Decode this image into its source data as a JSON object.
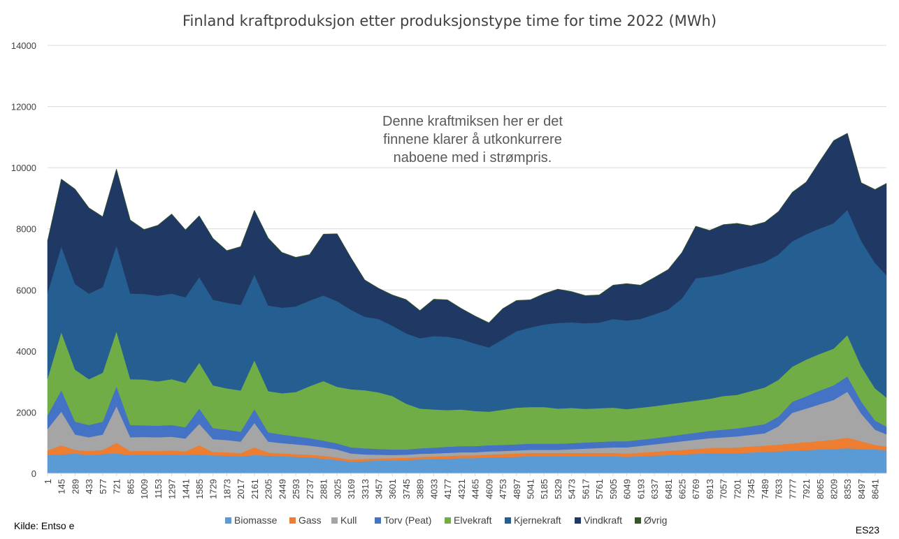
{
  "chart_data": {
    "type": "area",
    "title": "Finland kraftproduksjon etter produksjonstype time for time 2022 (MWh)",
    "xlabel": "",
    "ylabel": "",
    "ylim": [
      0,
      14000
    ],
    "yticks": [
      0,
      2000,
      4000,
      6000,
      8000,
      10000,
      12000,
      14000
    ],
    "xticks": [
      1,
      145,
      289,
      433,
      577,
      721,
      865,
      1009,
      1153,
      1297,
      1441,
      1585,
      1729,
      1873,
      2017,
      2161,
      2305,
      2449,
      2593,
      2737,
      2881,
      3025,
      3169,
      3313,
      3457,
      3601,
      3745,
      3889,
      4033,
      4177,
      4321,
      4465,
      4609,
      4753,
      4897,
      5041,
      5185,
      5329,
      5473,
      5617,
      5761,
      5905,
      6049,
      6193,
      6337,
      6481,
      6625,
      6769,
      6913,
      7057,
      7201,
      7345,
      7489,
      7633,
      7777,
      7921,
      8065,
      8209,
      8353,
      8497,
      8641
    ],
    "xlim": [
      1,
      8760
    ],
    "grid": true,
    "legend_position": "bottom",
    "annotation": [
      "Denne kraftmiksen her er det",
      "finnene klarer å utkonkurrere",
      "naboene med i strømpris."
    ],
    "series": [
      {
        "name": "Biomasse",
        "color": "#5B9BD5",
        "x": [
          1,
          145,
          289,
          433,
          577,
          721,
          865,
          1009,
          1153,
          1297,
          1441,
          1585,
          1729,
          1873,
          2017,
          2161,
          2305,
          2449,
          2593,
          2737,
          2881,
          3025,
          3169,
          3313,
          3457,
          3601,
          3745,
          3889,
          4033,
          4177,
          4321,
          4465,
          4609,
          4753,
          4897,
          5041,
          5185,
          5329,
          5473,
          5617,
          5761,
          5905,
          6049,
          6193,
          6337,
          6481,
          6625,
          6769,
          6913,
          7057,
          7201,
          7345,
          7489,
          7633,
          7777,
          7921,
          8065,
          8209,
          8353,
          8497,
          8641,
          8760
        ],
        "values": [
          600,
          620,
          650,
          600,
          630,
          650,
          600,
          620,
          610,
          620,
          600,
          620,
          590,
          580,
          560,
          600,
          580,
          560,
          540,
          520,
          480,
          440,
          380,
          400,
          420,
          430,
          440,
          460,
          470,
          480,
          500,
          500,
          520,
          530,
          540,
          560,
          560,
          560,
          560,
          560,
          560,
          560,
          540,
          560,
          580,
          600,
          620,
          640,
          660,
          660,
          660,
          680,
          700,
          720,
          740,
          760,
          780,
          800,
          820,
          800,
          780,
          760
        ]
      },
      {
        "name": "Gass",
        "color": "#ED7D31",
        "x": [
          1,
          145,
          289,
          433,
          577,
          721,
          865,
          1009,
          1153,
          1297,
          1441,
          1585,
          1729,
          1873,
          2017,
          2161,
          2305,
          2449,
          2593,
          2737,
          2881,
          3025,
          3169,
          3313,
          3457,
          3601,
          3745,
          3889,
          4033,
          4177,
          4321,
          4465,
          4609,
          4753,
          4897,
          5041,
          5185,
          5329,
          5473,
          5617,
          5761,
          5905,
          6049,
          6193,
          6337,
          6481,
          6625,
          6769,
          6913,
          7057,
          7201,
          7345,
          7489,
          7633,
          7777,
          7921,
          8065,
          8209,
          8353,
          8497,
          8641,
          8760
        ],
        "values": [
          150,
          300,
          120,
          130,
          140,
          350,
          130,
          120,
          120,
          130,
          120,
          300,
          110,
          110,
          100,
          250,
          100,
          90,
          90,
          90,
          90,
          80,
          70,
          70,
          70,
          70,
          70,
          80,
          80,
          90,
          90,
          90,
          100,
          100,
          110,
          110,
          110,
          110,
          110,
          110,
          110,
          110,
          110,
          120,
          130,
          140,
          150,
          160,
          170,
          180,
          190,
          200,
          210,
          220,
          240,
          260,
          280,
          300,
          350,
          250,
          150,
          120
        ]
      },
      {
        "name": "Kull",
        "color": "#A5A5A5",
        "x": [
          1,
          145,
          289,
          433,
          577,
          721,
          865,
          1009,
          1153,
          1297,
          1441,
          1585,
          1729,
          1873,
          2017,
          2161,
          2305,
          2449,
          2593,
          2737,
          2881,
          3025,
          3169,
          3313,
          3457,
          3601,
          3745,
          3889,
          4033,
          4177,
          4321,
          4465,
          4609,
          4753,
          4897,
          5041,
          5185,
          5329,
          5473,
          5617,
          5761,
          5905,
          6049,
          6193,
          6337,
          6481,
          6625,
          6769,
          6913,
          7057,
          7201,
          7345,
          7489,
          7633,
          7777,
          7921,
          8065,
          8209,
          8353,
          8497,
          8641,
          8760
        ],
        "values": [
          700,
          1100,
          500,
          450,
          500,
          1200,
          450,
          450,
          450,
          450,
          420,
          700,
          420,
          400,
          380,
          800,
          360,
          340,
          320,
          300,
          280,
          260,
          200,
          150,
          120,
          100,
          100,
          100,
          100,
          100,
          100,
          100,
          100,
          100,
          100,
          100,
          100,
          100,
          120,
          140,
          160,
          180,
          200,
          220,
          240,
          260,
          280,
          300,
          320,
          340,
          360,
          380,
          400,
          600,
          1000,
          1100,
          1200,
          1300,
          1500,
          900,
          500,
          400
        ]
      },
      {
        "name": "Torv (Peat)",
        "color": "#4472C4",
        "x": [
          1,
          145,
          289,
          433,
          577,
          721,
          865,
          1009,
          1153,
          1297,
          1441,
          1585,
          1729,
          1873,
          2017,
          2161,
          2305,
          2449,
          2593,
          2737,
          2881,
          3025,
          3169,
          3313,
          3457,
          3601,
          3745,
          3889,
          4033,
          4177,
          4321,
          4465,
          4609,
          4753,
          4897,
          5041,
          5185,
          5329,
          5473,
          5617,
          5761,
          5905,
          6049,
          6193,
          6337,
          6481,
          6625,
          6769,
          6913,
          7057,
          7201,
          7345,
          7489,
          7633,
          7777,
          7921,
          8065,
          8209,
          8353,
          8497,
          8641,
          8760
        ],
        "values": [
          450,
          700,
          420,
          400,
          420,
          650,
          400,
          380,
          380,
          380,
          370,
          500,
          360,
          340,
          320,
          450,
          300,
          280,
          260,
          240,
          220,
          200,
          200,
          200,
          190,
          180,
          170,
          180,
          190,
          200,
          200,
          200,
          200,
          200,
          200,
          200,
          200,
          200,
          200,
          200,
          200,
          200,
          200,
          200,
          200,
          210,
          220,
          230,
          240,
          250,
          260,
          280,
          300,
          320,
          360,
          400,
          450,
          480,
          500,
          400,
          300,
          250
        ]
      },
      {
        "name": "Elvekraft",
        "color": "#70AD47",
        "x": [
          1,
          145,
          289,
          433,
          577,
          721,
          865,
          1009,
          1153,
          1297,
          1441,
          1585,
          1729,
          1873,
          2017,
          2161,
          2305,
          2449,
          2593,
          2737,
          2881,
          3025,
          3169,
          3313,
          3457,
          3601,
          3745,
          3889,
          4033,
          4177,
          4321,
          4465,
          4609,
          4753,
          4897,
          5041,
          5185,
          5329,
          5473,
          5617,
          5761,
          5905,
          6049,
          6193,
          6337,
          6481,
          6625,
          6769,
          6913,
          7057,
          7201,
          7345,
          7489,
          7633,
          7777,
          7921,
          8065,
          8209,
          8353,
          8497,
          8641,
          8760
        ],
        "values": [
          1200,
          1900,
          1700,
          1500,
          1600,
          1800,
          1500,
          1500,
          1450,
          1500,
          1450,
          1500,
          1400,
          1350,
          1350,
          1600,
          1350,
          1350,
          1450,
          1700,
          1950,
          1850,
          1900,
          1900,
          1850,
          1750,
          1500,
          1300,
          1250,
          1200,
          1200,
          1150,
          1100,
          1150,
          1200,
          1200,
          1200,
          1150,
          1150,
          1100,
          1100,
          1100,
          1050,
          1050,
          1050,
          1050,
          1050,
          1050,
          1050,
          1100,
          1100,
          1150,
          1200,
          1200,
          1150,
          1200,
          1200,
          1200,
          1350,
          1150,
          1050,
          950
        ]
      },
      {
        "name": "Kjernekraft",
        "color": "#255E91",
        "x": [
          1,
          145,
          289,
          433,
          577,
          721,
          865,
          1009,
          1153,
          1297,
          1441,
          1585,
          1729,
          1873,
          2017,
          2161,
          2305,
          2449,
          2593,
          2737,
          2881,
          3025,
          3169,
          3313,
          3457,
          3601,
          3745,
          3889,
          4033,
          4177,
          4321,
          4465,
          4609,
          4753,
          4897,
          5041,
          5185,
          5329,
          5473,
          5617,
          5761,
          5905,
          6049,
          6193,
          6337,
          6481,
          6625,
          6769,
          6913,
          7057,
          7201,
          7345,
          7489,
          7633,
          7777,
          7921,
          8065,
          8209,
          8353,
          8497,
          8641,
          8760
        ],
        "values": [
          2800,
          2800,
          2800,
          2800,
          2800,
          2800,
          2800,
          2800,
          2800,
          2800,
          2800,
          2800,
          2800,
          2800,
          2800,
          2800,
          2800,
          2800,
          2800,
          2800,
          2800,
          2800,
          2600,
          2400,
          2400,
          2300,
          2300,
          2300,
          2400,
          2400,
          2300,
          2200,
          2100,
          2300,
          2500,
          2600,
          2700,
          2800,
          2800,
          2800,
          2800,
          2900,
          2900,
          2900,
          3000,
          3100,
          3400,
          4000,
          4000,
          4000,
          4100,
          4100,
          4100,
          4100,
          4100,
          4100,
          4100,
          4100,
          4100,
          4100,
          4100,
          4000
        ]
      },
      {
        "name": "Vindkraft",
        "color": "#203864",
        "x": [
          1,
          145,
          289,
          433,
          577,
          721,
          865,
          1009,
          1153,
          1297,
          1441,
          1585,
          1729,
          1873,
          2017,
          2161,
          2305,
          2449,
          2593,
          2737,
          2881,
          3025,
          3169,
          3313,
          3457,
          3601,
          3745,
          3889,
          4033,
          4177,
          4321,
          4465,
          4609,
          4753,
          4897,
          5041,
          5185,
          5329,
          5473,
          5617,
          5761,
          5905,
          6049,
          6193,
          6337,
          6481,
          6625,
          6769,
          6913,
          7057,
          7201,
          7345,
          7489,
          7633,
          7777,
          7921,
          8065,
          8209,
          8353,
          8497,
          8641,
          8760
        ],
        "values": [
          1700,
          2200,
          3100,
          2800,
          2300,
          2500,
          2400,
          2100,
          2300,
          2600,
          2200,
          2000,
          2000,
          1700,
          1900,
          2100,
          2200,
          1800,
          1600,
          1500,
          2000,
          2200,
          1700,
          1200,
          1000,
          1000,
          1100,
          900,
          1200,
          1200,
          1000,
          900,
          800,
          1000,
          1000,
          900,
          1000,
          1100,
          1000,
          900,
          900,
          1100,
          1200,
          1100,
          1200,
          1300,
          1500,
          1700,
          1500,
          1600,
          1500,
          1300,
          1300,
          1400,
          1600,
          1700,
          2200,
          2700,
          2500,
          1900,
          2400,
          3000
        ]
      },
      {
        "name": "Øvrig",
        "color": "#375623",
        "x": [
          1,
          145,
          289,
          433,
          577,
          721,
          865,
          1009,
          1153,
          1297,
          1441,
          1585,
          1729,
          1873,
          2017,
          2161,
          2305,
          2449,
          2593,
          2737,
          2881,
          3025,
          3169,
          3313,
          3457,
          3601,
          3745,
          3889,
          4033,
          4177,
          4321,
          4465,
          4609,
          4753,
          4897,
          5041,
          5185,
          5329,
          5473,
          5617,
          5761,
          5905,
          6049,
          6193,
          6337,
          6481,
          6625,
          6769,
          6913,
          7057,
          7201,
          7345,
          7489,
          7633,
          7777,
          7921,
          8065,
          8209,
          8353,
          8497,
          8641,
          8760
        ],
        "values": [
          10,
          10,
          10,
          10,
          10,
          10,
          10,
          10,
          10,
          10,
          10,
          10,
          10,
          10,
          10,
          10,
          10,
          10,
          10,
          10,
          10,
          10,
          10,
          10,
          10,
          10,
          10,
          10,
          10,
          10,
          10,
          10,
          10,
          10,
          10,
          10,
          10,
          10,
          10,
          10,
          10,
          10,
          10,
          10,
          10,
          10,
          10,
          10,
          10,
          10,
          10,
          10,
          10,
          10,
          10,
          10,
          10,
          10,
          10,
          10,
          10,
          10
        ]
      }
    ]
  },
  "footer": {
    "source": "Kilde: Entso e",
    "tag": "ES23"
  }
}
